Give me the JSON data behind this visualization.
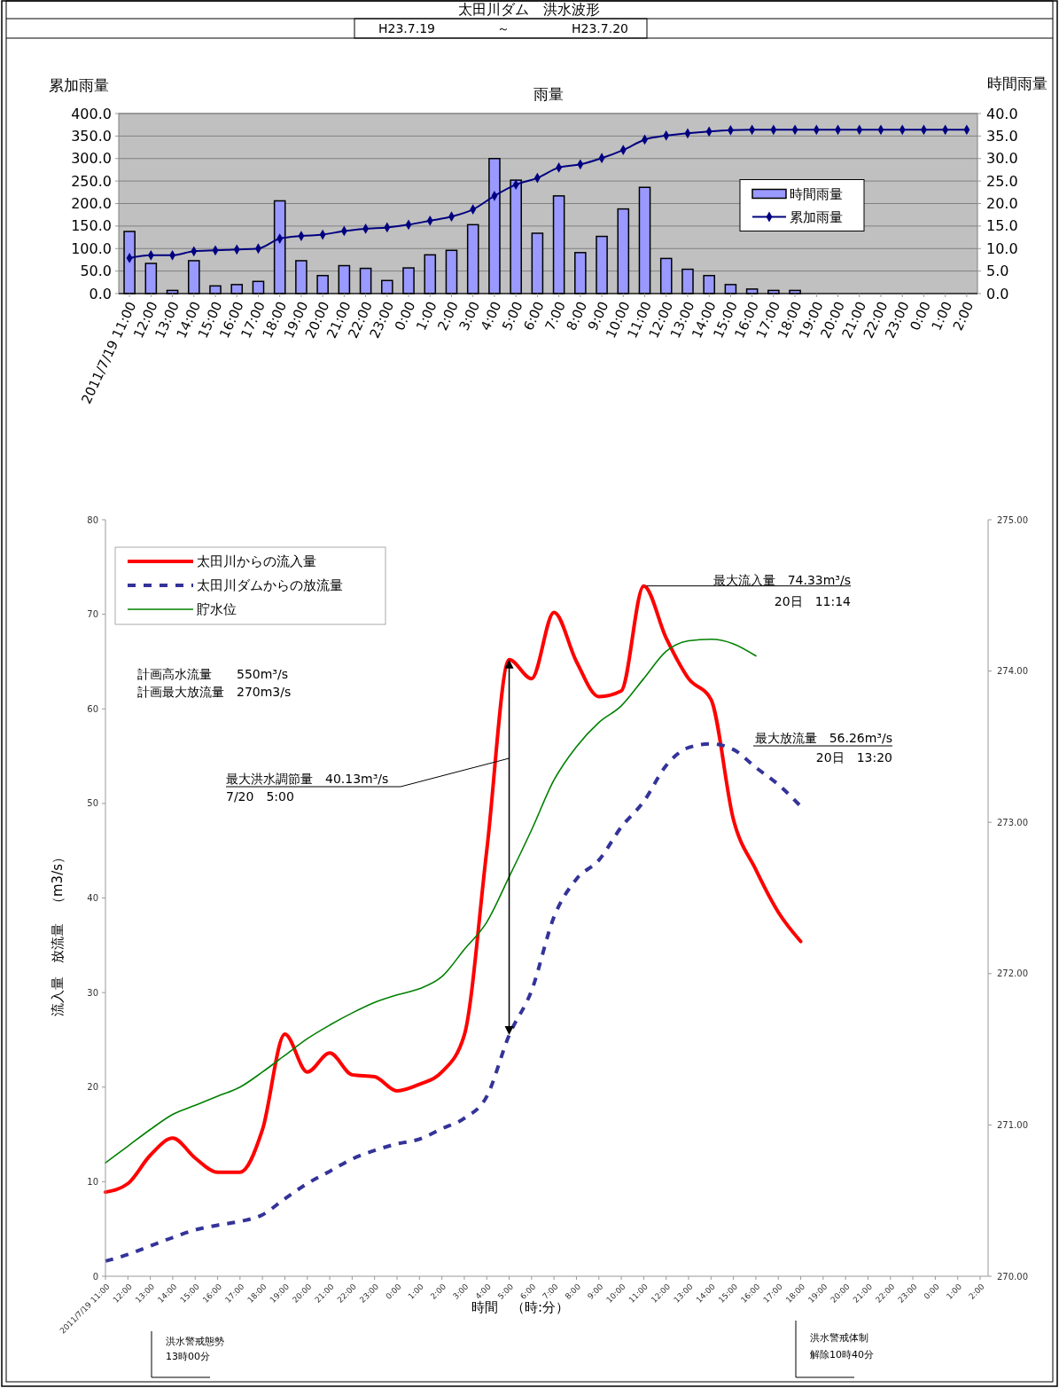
{
  "chart_data": [
    {
      "type": "bar",
      "title": "雨量",
      "ylabel": "累加雨量",
      "y2label": "時間雨量",
      "categories": [
        "2011/7/19 11:00",
        "12:00",
        "13:00",
        "14:00",
        "15:00",
        "16:00",
        "17:00",
        "18:00",
        "19:00",
        "20:00",
        "21:00",
        "22:00",
        "23:00",
        "0:00",
        "1:00",
        "2:00",
        "3:00",
        "4:00",
        "5:00",
        "6:00",
        "7:00",
        "8:00",
        "9:00",
        "10:00",
        "11:00",
        "12:00",
        "13:00",
        "14:00",
        "15:00",
        "16:00",
        "17:00",
        "18:00",
        "19:00",
        "20:00",
        "21:00",
        "22:00",
        "23:00",
        "0:00",
        "1:00",
        "2:00"
      ],
      "series": [
        {
          "name": "時間雨量",
          "type": "bar",
          "axis": "y2",
          "color": "#9999ff",
          "values": [
            13.8,
            6.7,
            0.7,
            7.3,
            1.7,
            2.0,
            2.7,
            20.6,
            7.3,
            4.0,
            6.2,
            5.6,
            2.9,
            5.7,
            8.6,
            9.6,
            15.3,
            30.0,
            25.2,
            13.4,
            21.7,
            9.1,
            12.7,
            18.8,
            23.6,
            7.8,
            5.4,
            4.0,
            2.0,
            1.0,
            0.7,
            0.7,
            0,
            0,
            0,
            0,
            0,
            0,
            0,
            0
          ]
        },
        {
          "name": "累加雨量",
          "type": "line",
          "axis": "y",
          "color": "#000080",
          "marker": "diamond",
          "values": [
            79,
            85,
            85,
            94,
            96,
            98,
            100,
            122,
            128,
            131,
            139,
            144,
            147,
            153,
            162,
            171,
            187,
            217,
            242,
            257,
            280,
            287,
            301,
            319,
            342,
            351,
            356,
            360,
            363,
            364,
            364,
            364,
            364,
            364,
            364,
            364,
            364,
            364,
            364,
            364
          ]
        }
      ],
      "ylim": [
        0,
        400
      ],
      "yticks": [
        {
          "value": 0,
          "label": "0.0"
        },
        {
          "value": 50,
          "label": "50.0"
        },
        {
          "value": 100,
          "label": "100.0"
        },
        {
          "value": 150,
          "label": "150.0"
        },
        {
          "value": 200,
          "label": "200.0"
        },
        {
          "value": 250,
          "label": "250.0"
        },
        {
          "value": 300,
          "label": "300.0"
        },
        {
          "value": 350,
          "label": "350.0"
        },
        {
          "value": 400,
          "label": "400.0"
        }
      ],
      "y2lim": [
        0,
        40
      ],
      "y2ticks": [
        {
          "value": 0,
          "label": "0.0"
        },
        {
          "value": 5,
          "label": "5.0"
        },
        {
          "value": 10,
          "label": "10.0"
        },
        {
          "value": 15,
          "label": "15.0"
        },
        {
          "value": 20,
          "label": "20.0"
        },
        {
          "value": 25,
          "label": "25.0"
        },
        {
          "value": 30,
          "label": "30.0"
        },
        {
          "value": 35,
          "label": "35.0"
        },
        {
          "value": 40,
          "label": "40.0"
        }
      ],
      "grid": "y",
      "legend": "right",
      "annotations": [
        "太田川ダム　洪水波形",
        "H23.7.19　　　　　～　　　　　H23.7.20"
      ]
    },
    {
      "type": "line",
      "xlabel": "時間　（時:分）",
      "ylabel": "流入量　放流量　（m3/s）",
      "categories": [
        "2011/7/19 11:00",
        "12:00",
        "13:00",
        "14:00",
        "15:00",
        "16:00",
        "17:00",
        "18:00",
        "19:00",
        "20:00",
        "21:00",
        "22:00",
        "23:00",
        "0:00",
        "1:00",
        "2:00",
        "3:00",
        "4:00",
        "5:00",
        "6:00",
        "7:00",
        "8:00",
        "9:00",
        "10:00",
        "11:00",
        "12:00",
        "13:00",
        "14:00",
        "15:00",
        "16:00",
        "17:00",
        "18:00",
        "19:00",
        "20:00",
        "21:00",
        "22:00",
        "23:00",
        "0:00",
        "1:00",
        "2:00"
      ],
      "series": [
        {
          "name": "太田川からの流入量",
          "color": "#ff0000",
          "line_style": "solid",
          "values": [
            8.9,
            9.8,
            12.8,
            14.6,
            12.5,
            11.0,
            11.0,
            15.5,
            25.6,
            21.6,
            23.6,
            21.3,
            21.1,
            19.6,
            20.3,
            21.6,
            25.5,
            45.0,
            65.2,
            63.2,
            70.2,
            65.0,
            61.3,
            61.9,
            73.0,
            67.5,
            63.2,
            61.0,
            48.3,
            43.0,
            38.5,
            35.4,
            null,
            null,
            null,
            null,
            null,
            null,
            null,
            null
          ]
        },
        {
          "name": "太田川ダムからの放流量",
          "color": "#333399",
          "line_style": "dashed",
          "values": [
            1.6,
            2.3,
            3.2,
            4.1,
            4.9,
            5.4,
            5.8,
            6.5,
            8.2,
            9.8,
            11.1,
            12.4,
            13.3,
            14.0,
            14.5,
            15.6,
            16.7,
            19.0,
            25.5,
            30.2,
            38.0,
            42.0,
            44.0,
            47.5,
            50.2,
            54.0,
            55.9,
            56.3,
            55.7,
            53.8,
            52.0,
            49.7,
            null,
            null,
            null,
            null,
            null,
            null,
            null,
            null
          ]
        },
        {
          "name": "貯水位",
          "color": "#008000",
          "line_style": "solid",
          "axis": "y2",
          "values": [
            270.75,
            270.86,
            270.97,
            271.07,
            271.13,
            271.19,
            271.25,
            271.35,
            271.46,
            271.57,
            271.66,
            271.74,
            271.81,
            271.86,
            271.9,
            271.98,
            272.16,
            272.34,
            272.64,
            272.95,
            273.28,
            273.5,
            273.66,
            273.77,
            273.95,
            274.13,
            274.2,
            274.21,
            274.18,
            274.1,
            null,
            null,
            null,
            null,
            null,
            null,
            null,
            null,
            null,
            null
          ]
        }
      ],
      "ylim": [
        0,
        80
      ],
      "yticks": [
        0,
        10,
        20,
        30,
        40,
        50,
        60,
        70,
        80
      ],
      "y2lim": [
        270,
        275
      ],
      "y2ticks": [
        {
          "value": 270,
          "label": "270.00"
        },
        {
          "value": 271,
          "label": "271.00"
        },
        {
          "value": 272,
          "label": "272.00"
        },
        {
          "value": 273,
          "label": "273.00"
        },
        {
          "value": 274,
          "label": "274.00"
        },
        {
          "value": 275,
          "label": "275.00"
        }
      ],
      "legend": "top left",
      "marker": "none",
      "annotations": [
        "計画高水流量　　550m³/s",
        "計画最大放流量　270m3/s",
        "最大洪水調節量　40.13m³/s",
        "7/20　5:00",
        {
          "text": "最大流入量　74.33m³/s",
          "x": "11:00",
          "y": 73.0
        },
        "20日　11:14",
        "最大放流量　56.26m³/s",
        "20日　13:20",
        "洪水警戒態勢",
        "13時00分",
        "洪水警戒体制",
        "解除10時40分"
      ]
    }
  ]
}
